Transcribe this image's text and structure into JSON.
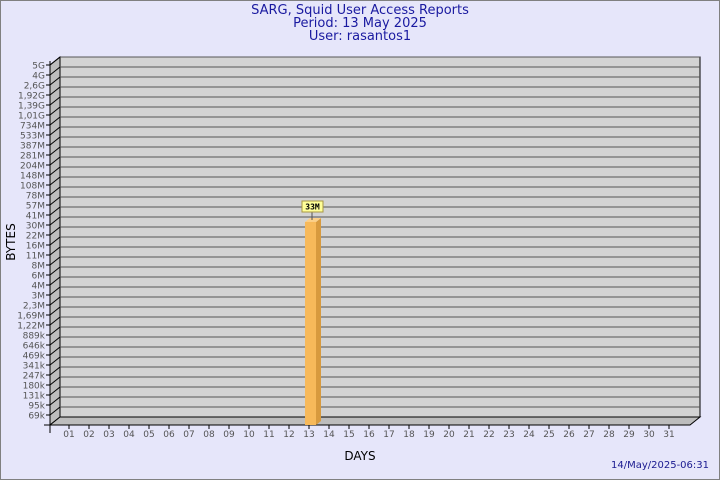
{
  "chart_data": {
    "type": "bar",
    "title": "SARG, Squid User Access Reports",
    "subtitle_period": "Period: 13 May 2025",
    "subtitle_user": "User: rasantos1",
    "xlabel": "DAYS",
    "ylabel": "BYTES",
    "y_scale": "log",
    "y_ticks": [
      "5G",
      "4G",
      "2,6G",
      "1,92G",
      "1,39G",
      "1,01G",
      "734M",
      "533M",
      "387M",
      "281M",
      "204M",
      "148M",
      "108M",
      "78M",
      "57M",
      "41M",
      "30M",
      "22M",
      "16M",
      "11M",
      "8M",
      "6M",
      "4M",
      "3M",
      "2,3M",
      "1,69M",
      "1,22M",
      "889k",
      "646k",
      "469k",
      "341k",
      "247k",
      "180k",
      "131k",
      "95k",
      "69k"
    ],
    "categories": [
      "01",
      "02",
      "03",
      "04",
      "05",
      "06",
      "07",
      "08",
      "09",
      "10",
      "11",
      "12",
      "13",
      "14",
      "15",
      "16",
      "17",
      "18",
      "19",
      "20",
      "21",
      "22",
      "23",
      "24",
      "25",
      "26",
      "27",
      "28",
      "29",
      "30",
      "31"
    ],
    "bars": [
      {
        "day": "13",
        "value": "33M"
      }
    ],
    "grid": true,
    "colors": {
      "background": "#e6e6fa",
      "plot": "#d3d3d3",
      "bar": "#f7b95a",
      "bar_side": "#d89a3e",
      "label_bg": "#ffff99"
    }
  },
  "footer": {
    "timestamp": "14/May/2025-06:31"
  }
}
